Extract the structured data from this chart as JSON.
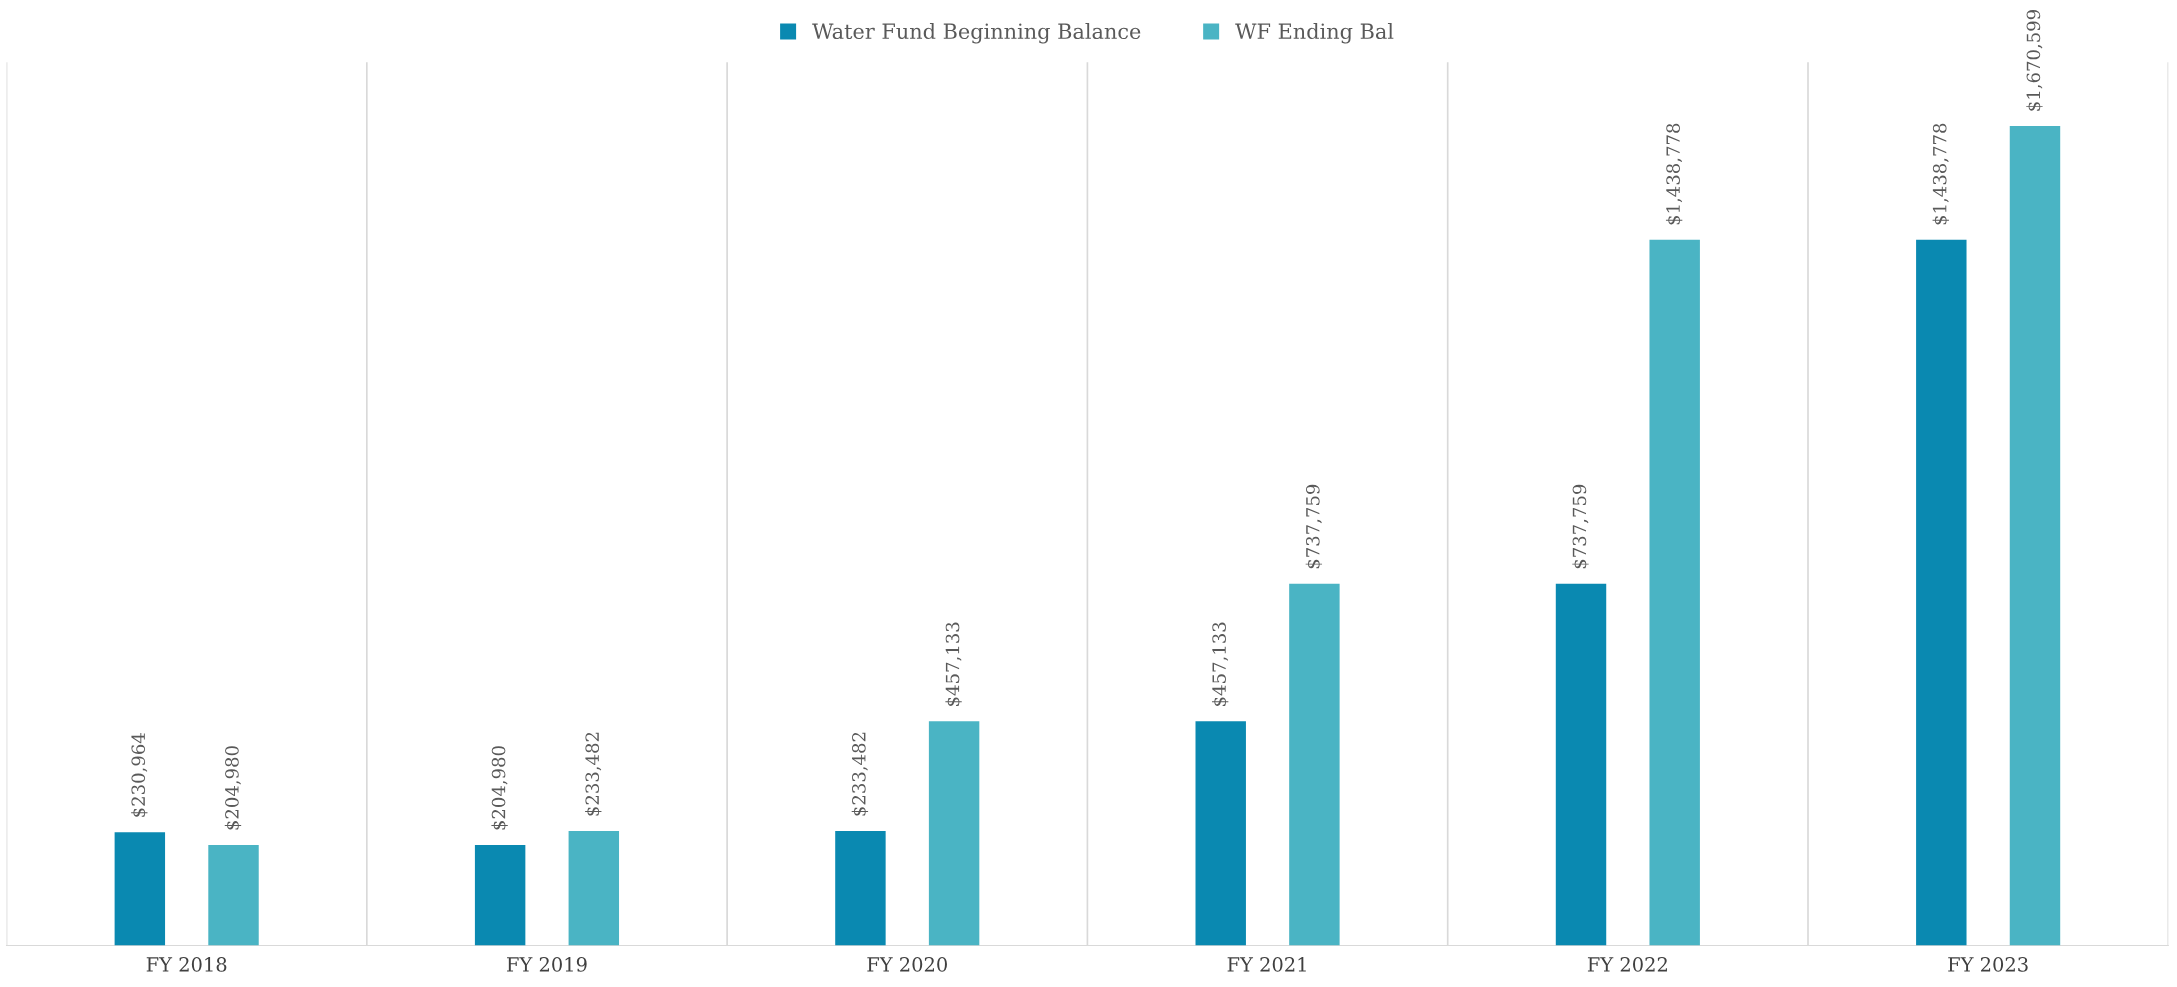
{
  "chart_data": {
    "type": "bar",
    "categories": [
      "FY 2018",
      "FY 2019",
      "FY 2020",
      "FY 2021",
      "FY 2022",
      "FY 2023"
    ],
    "series": [
      {
        "name": "Water Fund Beginning Balance",
        "color": "#0a89b1",
        "values": [
          230964,
          204980,
          233482,
          457133,
          737759,
          1438778
        ],
        "value_labels": [
          "$230,964",
          "$204,980",
          "$233,482",
          "$457,133",
          "$737,759",
          "$1,438,778"
        ]
      },
      {
        "name": "WF Ending Bal",
        "color": "#4ab4c4",
        "values": [
          204980,
          233482,
          457133,
          737759,
          1438778,
          1670599
        ],
        "value_labels": [
          "$204,980",
          "$233,482",
          "$457,133",
          "$737,759",
          "$1,438,778",
          "$1,670,599"
        ]
      }
    ],
    "grid": "x",
    "legend": "top",
    "tick_labels": "x"
  }
}
